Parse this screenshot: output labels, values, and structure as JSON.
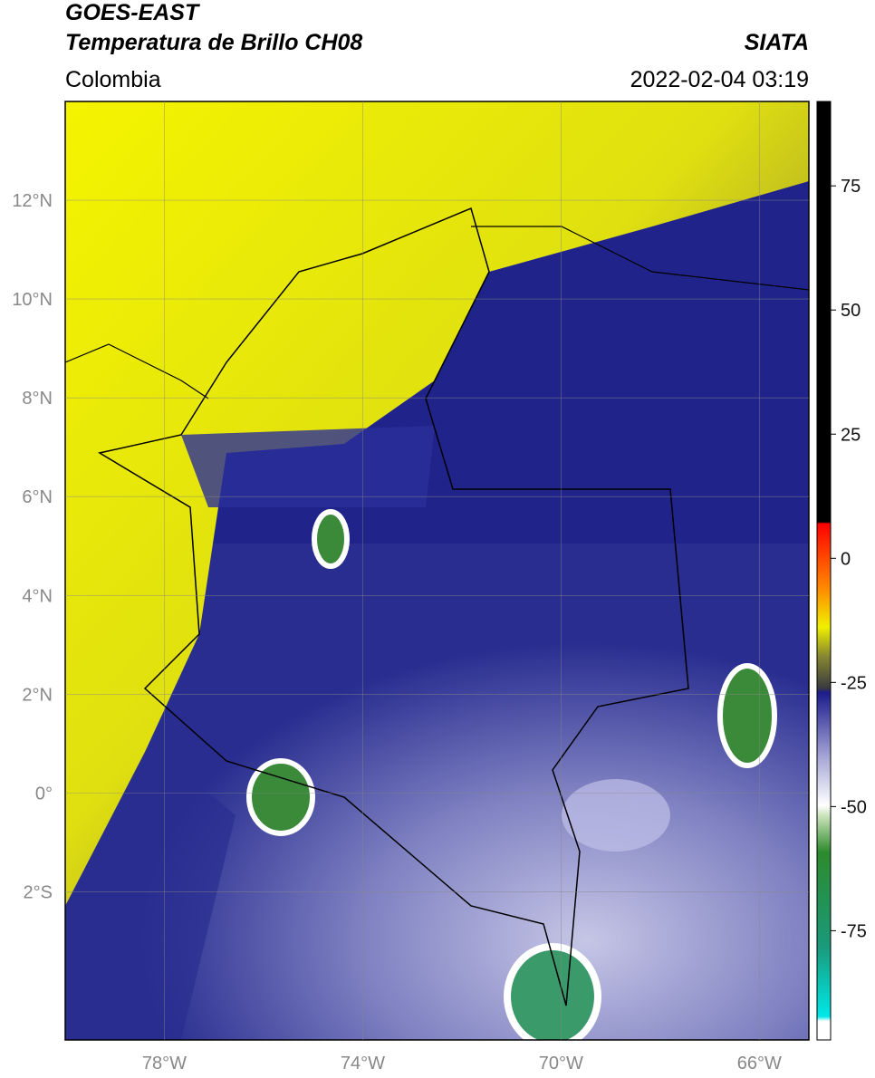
{
  "header": {
    "title": "GOES-EAST",
    "subtitle": "Temperatura de Brillo CH08",
    "source": "SIATA",
    "region": "Colombia",
    "datetime": "2022-02-04 03:19"
  },
  "map": {
    "lon_range": [
      -80,
      -65
    ],
    "lat_range": [
      -5,
      14
    ],
    "lat_ticks": [
      {
        "value": 12,
        "label": "12°N"
      },
      {
        "value": 10,
        "label": "10°N"
      },
      {
        "value": 8,
        "label": "8°N"
      },
      {
        "value": 6,
        "label": "6°N"
      },
      {
        "value": 4,
        "label": "4°N"
      },
      {
        "value": 2,
        "label": "2°N"
      },
      {
        "value": 0,
        "label": "0°"
      },
      {
        "value": -2,
        "label": "2°S"
      }
    ],
    "lon_ticks": [
      {
        "value": -78,
        "label": "78°W"
      },
      {
        "value": -74,
        "label": "74°W"
      },
      {
        "value": -70,
        "label": "70°W"
      },
      {
        "value": -66,
        "label": "66°W"
      }
    ]
  },
  "colorbar": {
    "range": [
      -97,
      92
    ],
    "ticks": [
      75,
      50,
      25,
      0,
      -25,
      -50,
      -75
    ]
  }
}
